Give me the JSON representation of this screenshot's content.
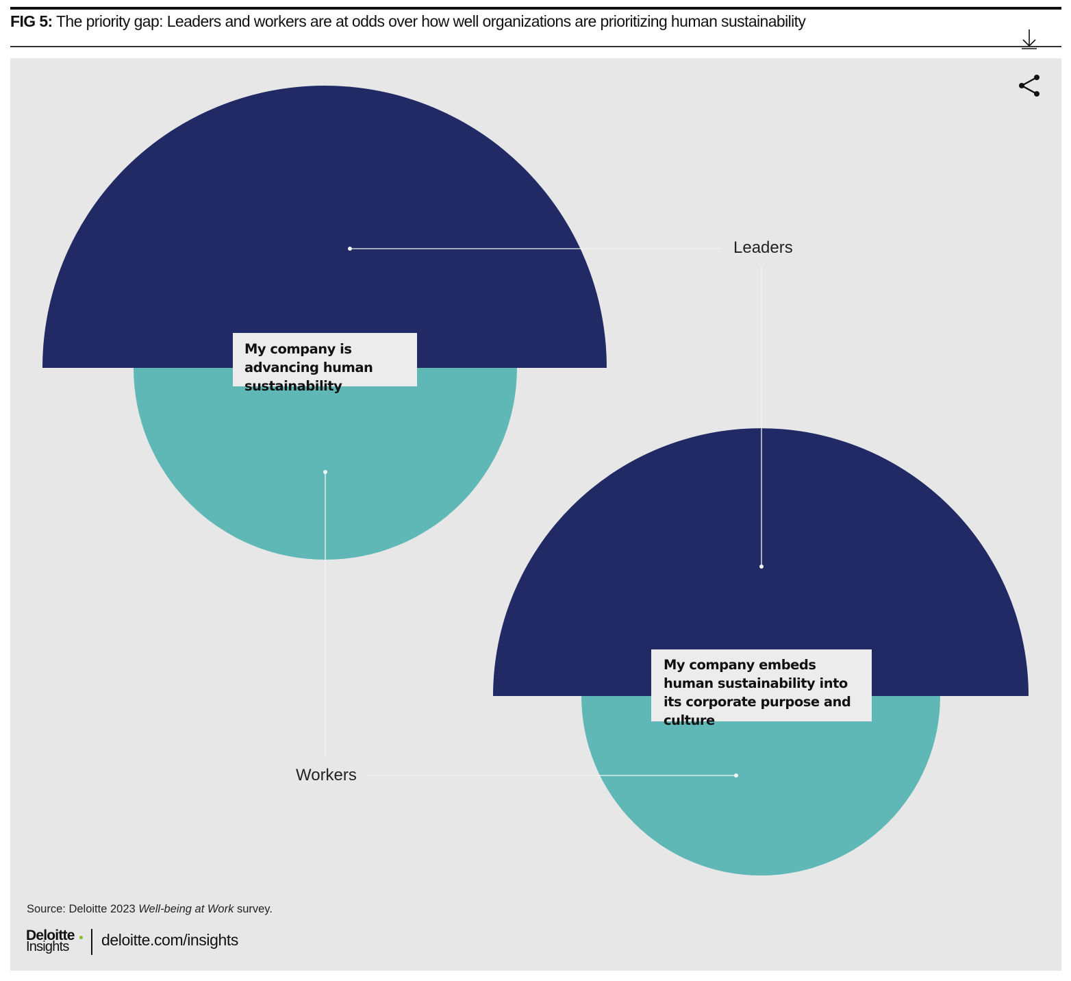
{
  "header": {
    "fig_label": "FIG 5:",
    "title": "The priority gap: Leaders and workers are at odds over how well organizations are prioritizing human sustainability"
  },
  "toolbar": {
    "download_icon": "download-icon",
    "share_icon": "share-icon"
  },
  "colors": {
    "leaders": "#212a65",
    "workers": "#5fb8b6",
    "panel_background": "#e7e7e7"
  },
  "chart_data": {
    "type": "half-circle comparison",
    "series": [
      {
        "name": "Leaders"
      },
      {
        "name": "Workers"
      }
    ],
    "categories": [
      "My company is advancing human sustainability",
      "My company embeds human sustainability into its corporate purpose and culture"
    ]
  },
  "footer": {
    "source_prefix": "Source: Deloitte 2023 ",
    "source_italic": "Well-being at Work",
    "source_suffix": " survey.",
    "logo_name": "Deloitte",
    "logo_sub": "Insights",
    "link": "deloitte.com/insights"
  }
}
